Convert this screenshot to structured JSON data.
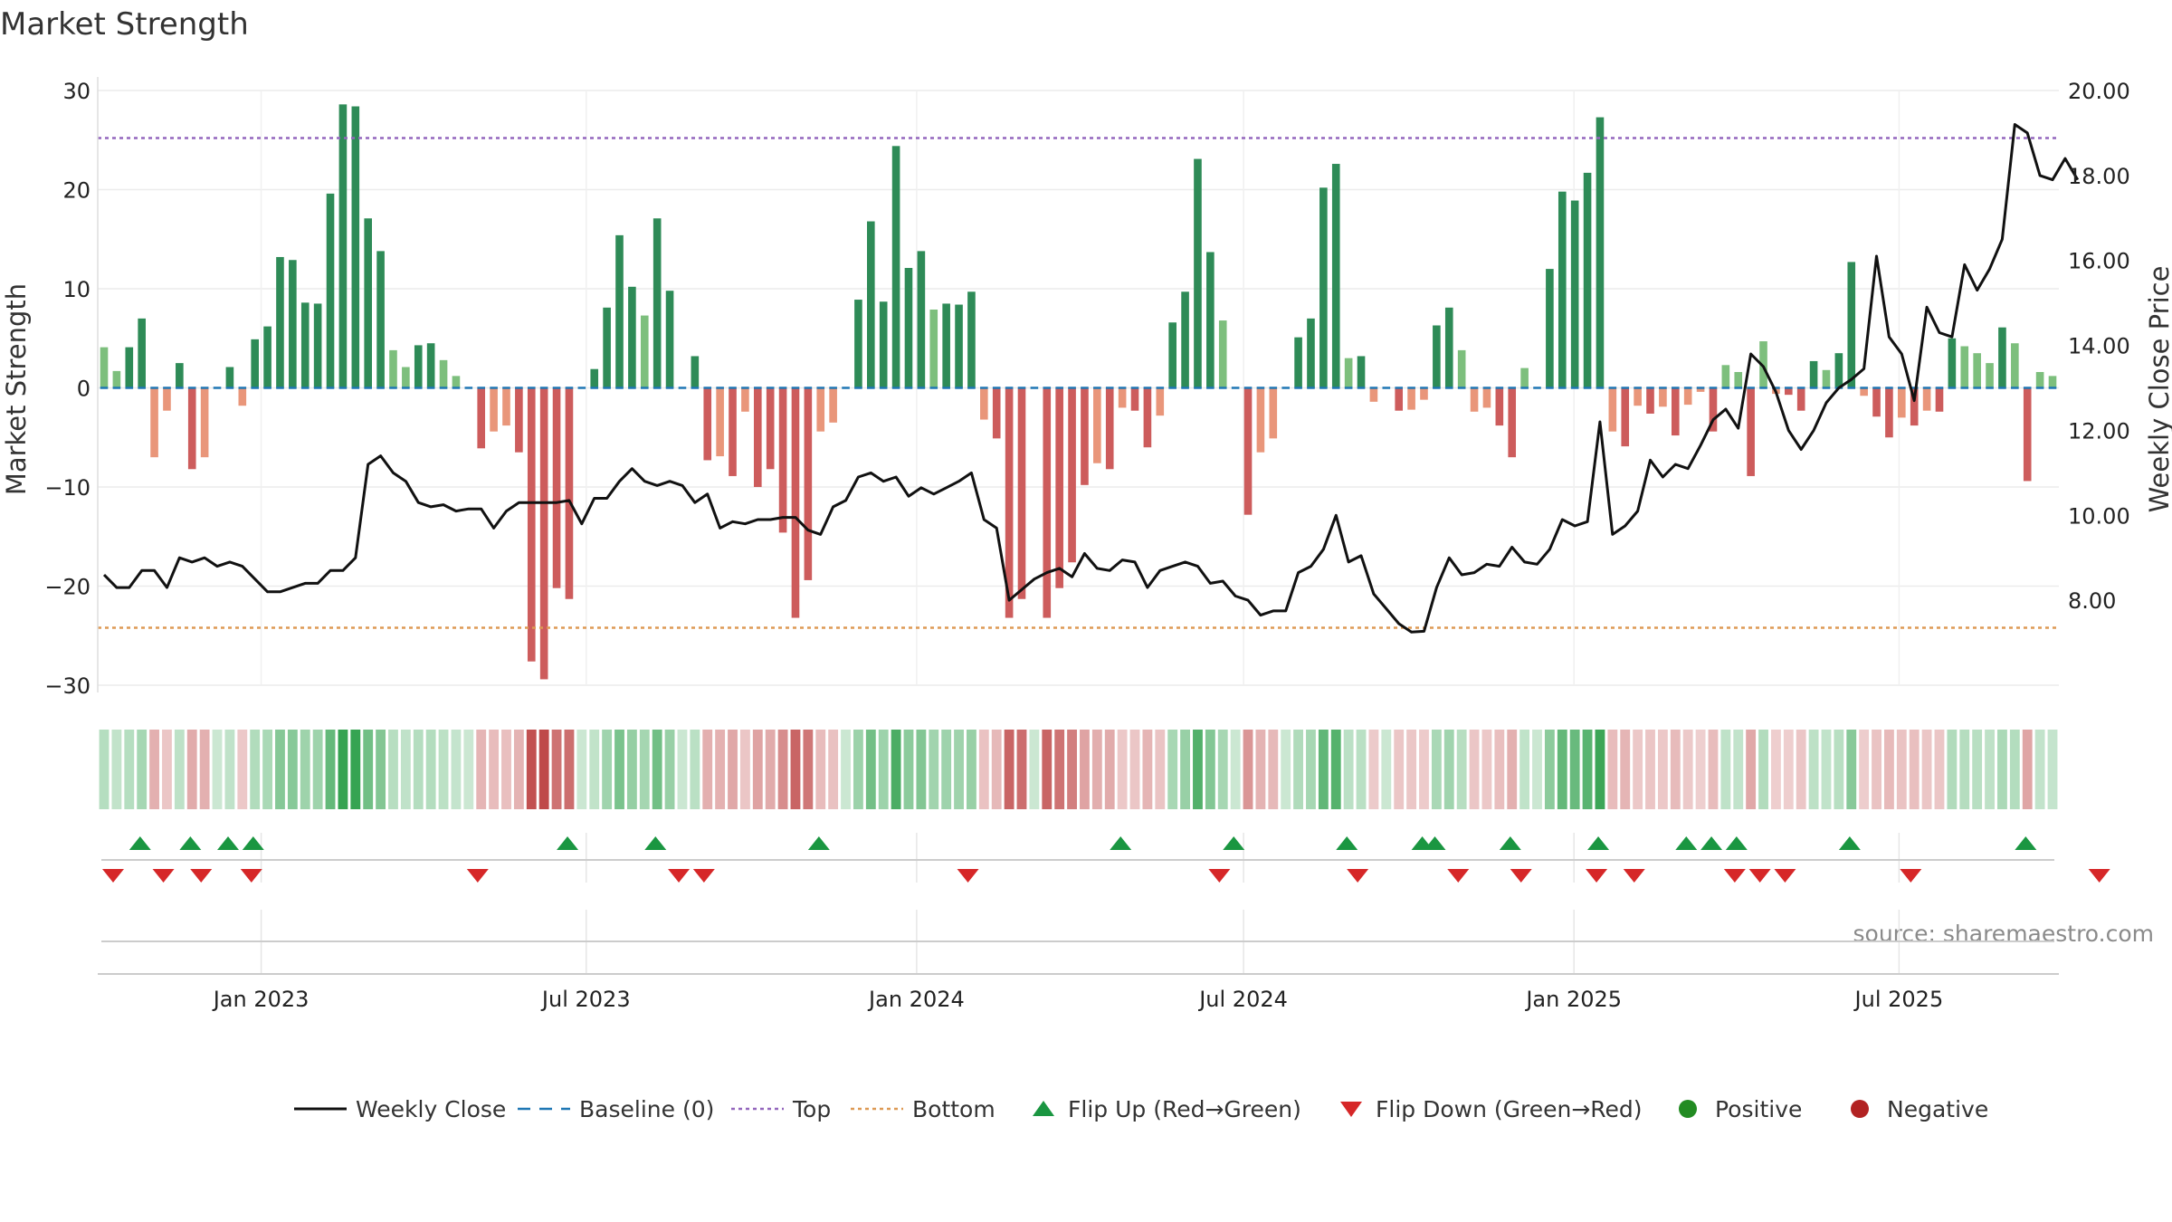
{
  "chart_data": {
    "type": "bar",
    "title": "Market Strength",
    "ylabel_left": "Market Strength",
    "ylabel_right": "Weekly Close Price",
    "ylim_left": [
      -30,
      30
    ],
    "ylim_right": [
      6.0,
      20.0
    ],
    "yticks_left": [
      30,
      20,
      10,
      0,
      -10,
      -20,
      -30
    ],
    "yticks_right": [
      "20.00",
      "18.00",
      "16.00",
      "14.00",
      "12.00",
      "10.00",
      "8.00"
    ],
    "x_start": "2022-10-02",
    "x_end": "2025-09-28",
    "x_ticks": [
      {
        "date": "2023-01-01",
        "label": "Jan 2023"
      },
      {
        "date": "2023-07-01",
        "label": "Jul 2023"
      },
      {
        "date": "2024-01-01",
        "label": "Jan 2024"
      },
      {
        "date": "2024-07-01",
        "label": "Jul 2024"
      },
      {
        "date": "2025-01-01",
        "label": "Jan 2025"
      },
      {
        "date": "2025-07-01",
        "label": "Jul 2025"
      }
    ],
    "top_level": 25.2,
    "bottom_level": -24.2,
    "baseline": 0,
    "strength_values": [
      4.1,
      1.7,
      4.1,
      7.0,
      -7.0,
      -2.3,
      2.5,
      -8.2,
      -7.0,
      0,
      2.1,
      -1.8,
      4.9,
      6.2,
      13.2,
      12.9,
      8.6,
      8.5,
      19.6,
      28.6,
      28.4,
      17.1,
      13.8,
      3.8,
      2.1,
      4.3,
      4.5,
      2.8,
      1.2,
      0,
      -6.1,
      -4.4,
      -3.8,
      -6.5,
      -27.6,
      -29.4,
      -20.2,
      -21.3,
      0,
      1.9,
      8.1,
      15.4,
      10.2,
      7.3,
      17.1,
      9.8,
      0,
      3.2,
      -7.3,
      -6.9,
      -8.9,
      -2.4,
      -10.0,
      -8.2,
      -14.6,
      -23.2,
      -19.4,
      -4.4,
      -3.5,
      0,
      8.9,
      16.8,
      8.7,
      24.4,
      12.1,
      13.8,
      7.9,
      8.5,
      8.4,
      9.7,
      -3.2,
      -5.1,
      -23.2,
      -21.3,
      0,
      -23.2,
      -20.2,
      -17.6,
      -9.8,
      -7.6,
      -8.2,
      -2.0,
      -2.3,
      -6.0,
      -2.8,
      6.6,
      9.7,
      23.1,
      13.7,
      6.8,
      0,
      -12.8,
      -6.5,
      -5.1,
      0,
      5.1,
      7.0,
      20.2,
      22.6,
      3.0,
      3.2,
      -1.4,
      0,
      -2.3,
      -2.2,
      -1.2,
      6.3,
      8.1,
      3.8,
      -2.4,
      -2.0,
      -3.8,
      -7.0,
      2.0,
      0,
      12.0,
      19.8,
      18.9,
      21.7,
      27.3,
      -4.4,
      -5.9,
      -1.8,
      -2.6,
      -1.9,
      -4.8,
      -1.7,
      -0.4,
      -4.4,
      2.3,
      1.6,
      -8.9,
      4.7,
      -0.6,
      -0.7,
      -2.3,
      2.7,
      1.8,
      3.5,
      12.7,
      -0.8,
      -2.9,
      -5.0,
      -3.0,
      -3.8,
      -2.3,
      -2.4,
      5.0,
      4.2,
      3.5,
      2.5,
      6.1,
      4.5,
      -9.4,
      1.6,
      1.2
    ],
    "close_values": [
      8.6,
      8.3,
      8.3,
      8.7,
      8.7,
      8.3,
      9.0,
      8.9,
      9.0,
      8.8,
      8.9,
      8.8,
      8.5,
      8.2,
      8.2,
      8.3,
      8.4,
      8.4,
      8.7,
      8.7,
      9.0,
      11.2,
      11.4,
      11.0,
      10.8,
      10.3,
      10.2,
      10.25,
      10.1,
      10.15,
      10.15,
      9.7,
      10.1,
      10.3,
      10.3,
      10.3,
      10.3,
      10.35,
      9.8,
      10.4,
      10.4,
      10.8,
      11.1,
      10.8,
      10.7,
      10.8,
      10.7,
      10.3,
      10.5,
      9.7,
      9.85,
      9.8,
      9.9,
      9.9,
      9.95,
      9.95,
      9.65,
      9.55,
      10.2,
      10.35,
      10.9,
      11.0,
      10.8,
      10.9,
      10.45,
      10.65,
      10.5,
      10.65,
      10.8,
      11.0,
      9.9,
      9.7,
      8.0,
      8.25,
      8.5,
      8.65,
      8.75,
      8.55,
      9.1,
      8.75,
      8.7,
      8.95,
      8.9,
      8.3,
      8.7,
      8.8,
      8.9,
      8.8,
      8.4,
      8.45,
      8.1,
      8.0,
      7.65,
      7.75,
      7.75,
      8.65,
      8.8,
      9.2,
      10.0,
      8.9,
      9.05,
      8.15,
      7.8,
      7.45,
      7.25,
      7.27,
      8.3,
      9.0,
      8.6,
      8.65,
      8.85,
      8.8,
      9.25,
      8.9,
      8.85,
      9.2,
      9.9,
      9.75,
      9.85,
      12.2,
      9.55,
      9.75,
      10.1,
      11.3,
      10.9,
      11.2,
      11.1,
      11.65,
      12.25,
      12.5,
      12.05,
      13.8,
      13.5,
      12.9,
      12.0,
      11.55,
      12.0,
      12.65,
      13.0,
      13.2,
      13.45,
      16.1,
      14.2,
      13.8,
      12.7,
      14.9,
      14.3,
      14.2,
      15.9,
      15.3,
      15.8,
      16.5,
      19.2,
      19.0,
      18.0,
      17.9,
      18.4,
      17.9
    ],
    "flip_up_indices": [
      2,
      6,
      9,
      11,
      36,
      43,
      56,
      80,
      89,
      98,
      104,
      105,
      111,
      118,
      125,
      127,
      129,
      138,
      152
    ],
    "flip_down_indices": [
      0,
      4,
      7,
      11,
      29,
      45,
      47,
      68,
      88,
      99,
      107,
      112,
      118,
      121,
      129,
      131,
      133,
      143,
      158
    ],
    "legend": [
      {
        "key": "weekly_close",
        "label": "Weekly Close"
      },
      {
        "key": "baseline",
        "label": "Baseline (0)"
      },
      {
        "key": "top",
        "label": "Top"
      },
      {
        "key": "bottom",
        "label": "Bottom"
      },
      {
        "key": "flip_up",
        "label": "Flip Up (Red→Green)"
      },
      {
        "key": "flip_down",
        "label": "Flip Down (Green→Red)"
      },
      {
        "key": "positive",
        "label": "Positive"
      },
      {
        "key": "negative",
        "label": "Negative"
      }
    ],
    "grid": true,
    "legend_position": "bottom",
    "source": "source: sharemaestro.com"
  },
  "colors": {
    "strong_green": "#2e8b57",
    "light_green": "#7dbf7d",
    "strong_red": "#cd5c5c",
    "light_red": "#e9967a",
    "close_line": "#111111",
    "baseline": "#1f77b4",
    "top": "#9467bd",
    "bottom": "#dd9a55",
    "flip_up": "#1a9641",
    "flip_down": "#d62728",
    "positive": "#228b22",
    "negative": "#b22222"
  }
}
